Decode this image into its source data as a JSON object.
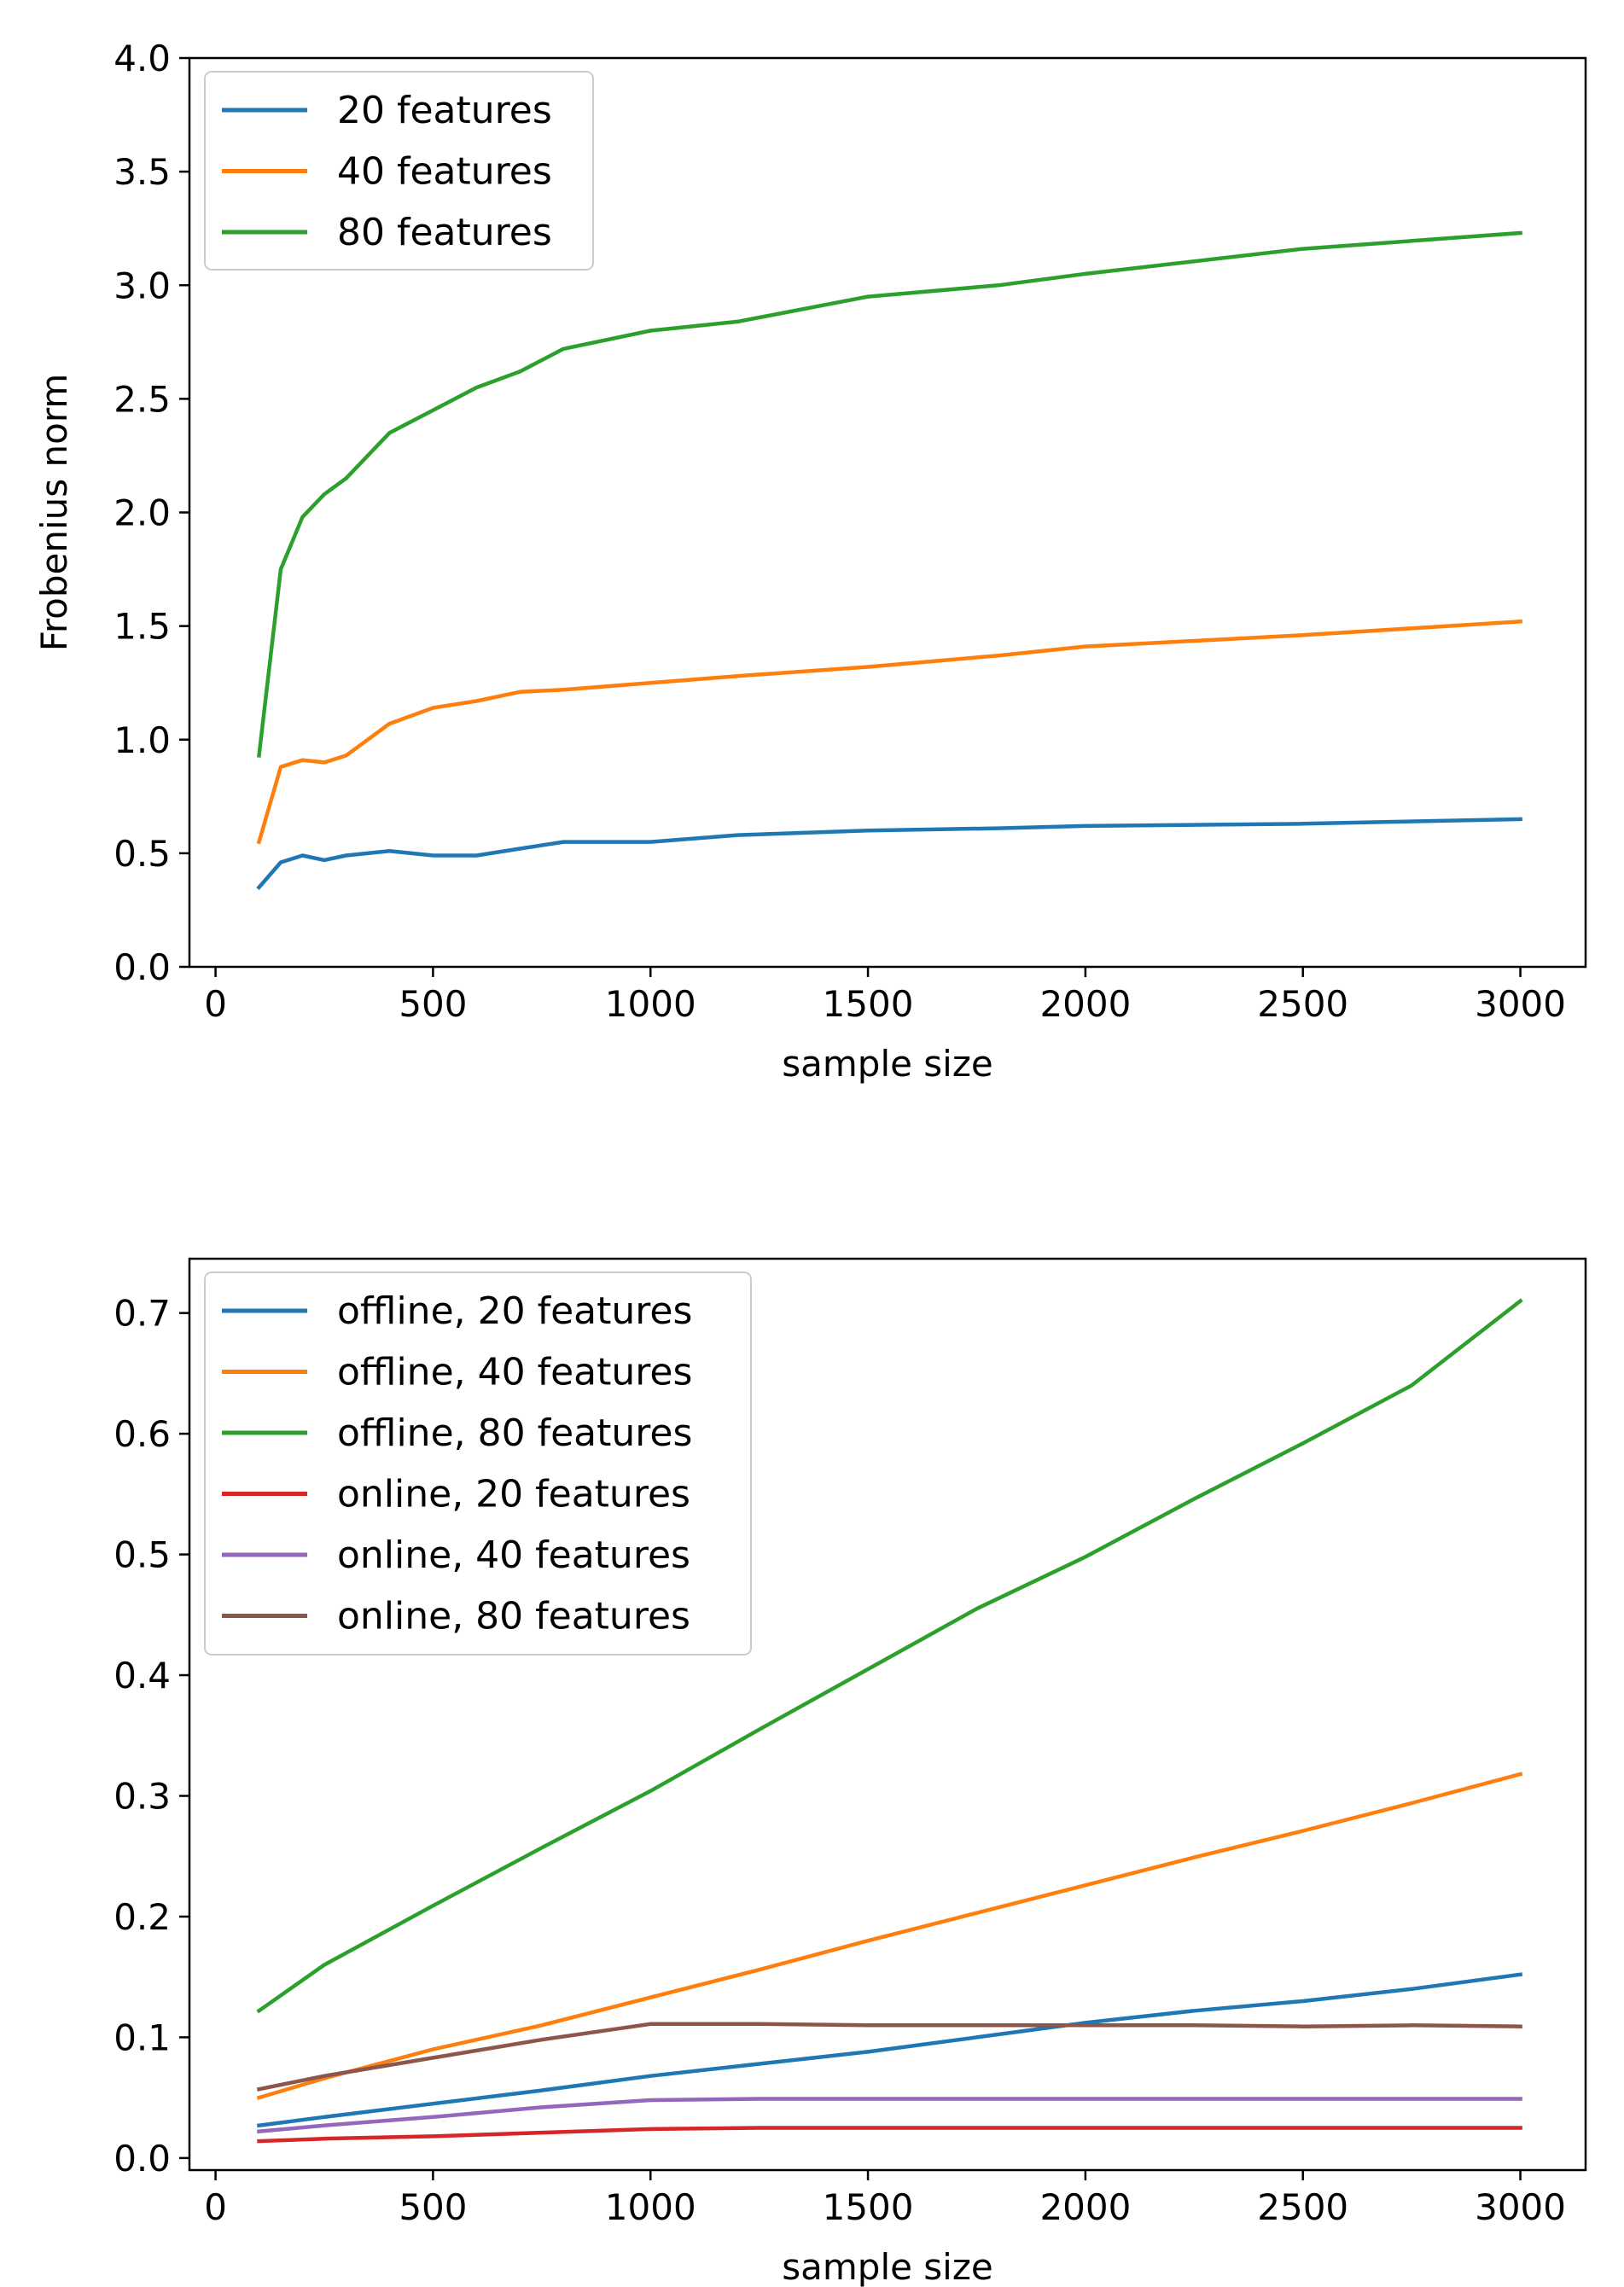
{
  "chart_data": [
    {
      "type": "line",
      "title": "",
      "xlabel": "sample size",
      "ylabel": "Frobenius norm",
      "xlim": [
        -60,
        3150
      ],
      "ylim": [
        0.0,
        4.0
      ],
      "xticks": [
        0,
        500,
        1000,
        1500,
        2000,
        2500,
        3000
      ],
      "yticks": [
        0.0,
        0.5,
        1.0,
        1.5,
        2.0,
        2.5,
        3.0,
        3.5,
        4.0
      ],
      "ytick_labels": [
        "0.0",
        "0.5",
        "1.0",
        "1.5",
        "2.0",
        "2.5",
        "3.0",
        "3.5",
        "4.0"
      ],
      "legend": "top-left",
      "grid": false,
      "x": [
        100,
        150,
        200,
        250,
        300,
        400,
        500,
        600,
        700,
        800,
        1000,
        1200,
        1500,
        1800,
        2000,
        2500,
        3000
      ],
      "series": [
        {
          "name": "20 features",
          "color": "#1f77b4",
          "values": [
            0.35,
            0.46,
            0.49,
            0.47,
            0.49,
            0.51,
            0.49,
            0.49,
            0.52,
            0.55,
            0.55,
            0.58,
            0.6,
            0.61,
            0.62,
            0.63,
            0.65
          ]
        },
        {
          "name": "40 features",
          "color": "#ff7f0e",
          "values": [
            0.55,
            0.88,
            0.91,
            0.9,
            0.93,
            1.07,
            1.14,
            1.17,
            1.21,
            1.22,
            1.25,
            1.28,
            1.32,
            1.37,
            1.41,
            1.46,
            1.52
          ]
        },
        {
          "name": "80 features",
          "color": "#2ca02c",
          "values": [
            0.93,
            1.75,
            1.98,
            2.08,
            2.15,
            2.35,
            2.45,
            2.55,
            2.62,
            2.72,
            2.8,
            2.84,
            2.95,
            3.0,
            3.05,
            3.16,
            3.23
          ]
        }
      ]
    },
    {
      "type": "line",
      "title": "",
      "xlabel": "sample size",
      "ylabel": "",
      "xlim": [
        -60,
        3150
      ],
      "ylim": [
        -0.01,
        0.745
      ],
      "xticks": [
        0,
        500,
        1000,
        1500,
        2000,
        2500,
        3000
      ],
      "yticks": [
        0.0,
        0.1,
        0.2,
        0.3,
        0.4,
        0.5,
        0.6,
        0.7
      ],
      "ytick_labels": [
        "0.0",
        "0.1",
        "0.2",
        "0.3",
        "0.4",
        "0.5",
        "0.6",
        "0.7"
      ],
      "legend": "top-left",
      "grid": false,
      "x": [
        100,
        250,
        500,
        750,
        1000,
        1250,
        1500,
        1750,
        2000,
        2250,
        2500,
        2750,
        3000
      ],
      "series": [
        {
          "name": "offline, 20 features",
          "color": "#1f77b4",
          "values": [
            0.027,
            0.034,
            0.045,
            0.056,
            0.068,
            0.078,
            0.088,
            0.1,
            0.112,
            0.122,
            0.13,
            0.14,
            0.152
          ]
        },
        {
          "name": "offline, 40 features",
          "color": "#ff7f0e",
          "values": [
            0.05,
            0.066,
            0.09,
            0.11,
            0.133,
            0.156,
            0.18,
            0.203,
            0.226,
            0.249,
            0.271,
            0.294,
            0.318
          ]
        },
        {
          "name": "offline, 80 features",
          "color": "#2ca02c",
          "values": [
            0.122,
            0.16,
            0.209,
            0.257,
            0.304,
            0.355,
            0.405,
            0.455,
            0.498,
            0.546,
            0.592,
            0.64,
            0.71
          ]
        },
        {
          "name": "online, 20 features",
          "color": "#d62728",
          "values": [
            0.014,
            0.016,
            0.018,
            0.021,
            0.024,
            0.025,
            0.025,
            0.025,
            0.025,
            0.025,
            0.025,
            0.025,
            0.025
          ]
        },
        {
          "name": "online, 40 features",
          "color": "#9467bd",
          "values": [
            0.022,
            0.027,
            0.034,
            0.042,
            0.048,
            0.049,
            0.049,
            0.049,
            0.049,
            0.049,
            0.049,
            0.049,
            0.049
          ]
        },
        {
          "name": "online, 80 features",
          "color": "#8c564b",
          "values": [
            0.057,
            0.068,
            0.083,
            0.098,
            0.111,
            0.111,
            0.11,
            0.11,
            0.11,
            0.11,
            0.109,
            0.11,
            0.109
          ]
        }
      ]
    }
  ]
}
